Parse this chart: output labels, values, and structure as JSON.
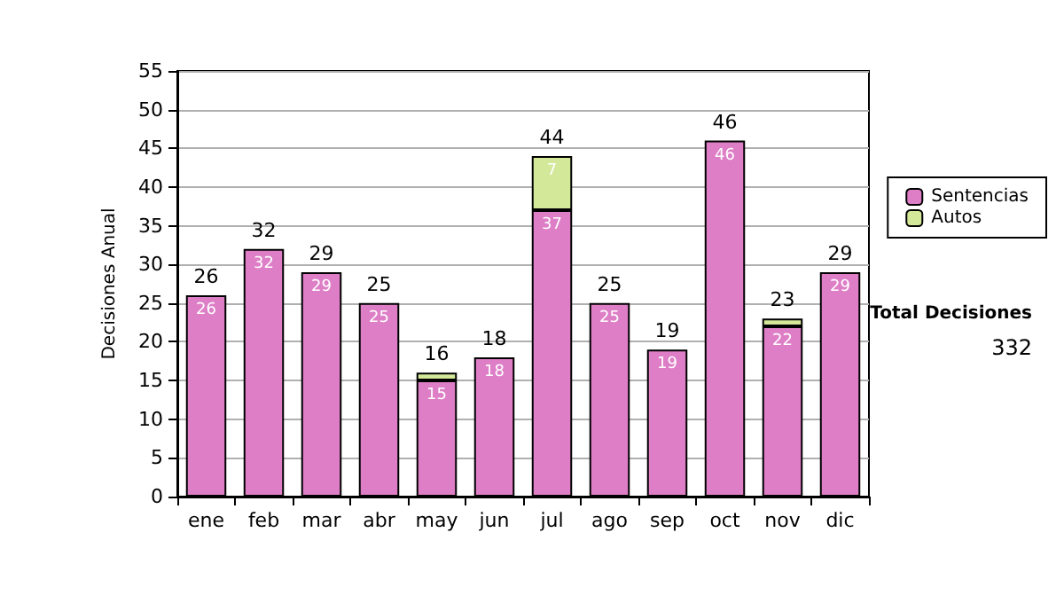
{
  "chart_data": {
    "type": "bar",
    "ylabel": "Decisiones Anual",
    "categories": [
      "ene",
      "feb",
      "mar",
      "abr",
      "may",
      "jun",
      "jul",
      "ago",
      "sep",
      "oct",
      "nov",
      "dic"
    ],
    "series": [
      {
        "name": "Sentencias",
        "color": "#dd7ec6",
        "values": [
          26,
          32,
          29,
          25,
          15,
          18,
          37,
          25,
          19,
          46,
          22,
          29
        ],
        "value_labels": [
          "26",
          "32",
          "29",
          "25",
          "15",
          "18",
          "37",
          "25",
          "19",
          "46",
          "22",
          "29"
        ]
      },
      {
        "name": "Autos",
        "color": "#d4e89a",
        "values": [
          0,
          0,
          0,
          0,
          1,
          0,
          7,
          0,
          0,
          0,
          1,
          0
        ],
        "value_labels": [
          null,
          null,
          null,
          null,
          null,
          null,
          "7",
          null,
          null,
          null,
          null,
          null
        ]
      }
    ],
    "stacked": true,
    "totals": [
      "26",
      "32",
      "29",
      "25",
      "16",
      "18",
      "44",
      "25",
      "19",
      "46",
      "23",
      "29"
    ],
    "ylim": [
      0,
      55
    ],
    "yticks": [
      0,
      5,
      10,
      15,
      20,
      25,
      30,
      35,
      40,
      45,
      50,
      55
    ],
    "grid": "y",
    "legend": "right",
    "annotations": [
      "Total Decisiones",
      "332"
    ]
  }
}
